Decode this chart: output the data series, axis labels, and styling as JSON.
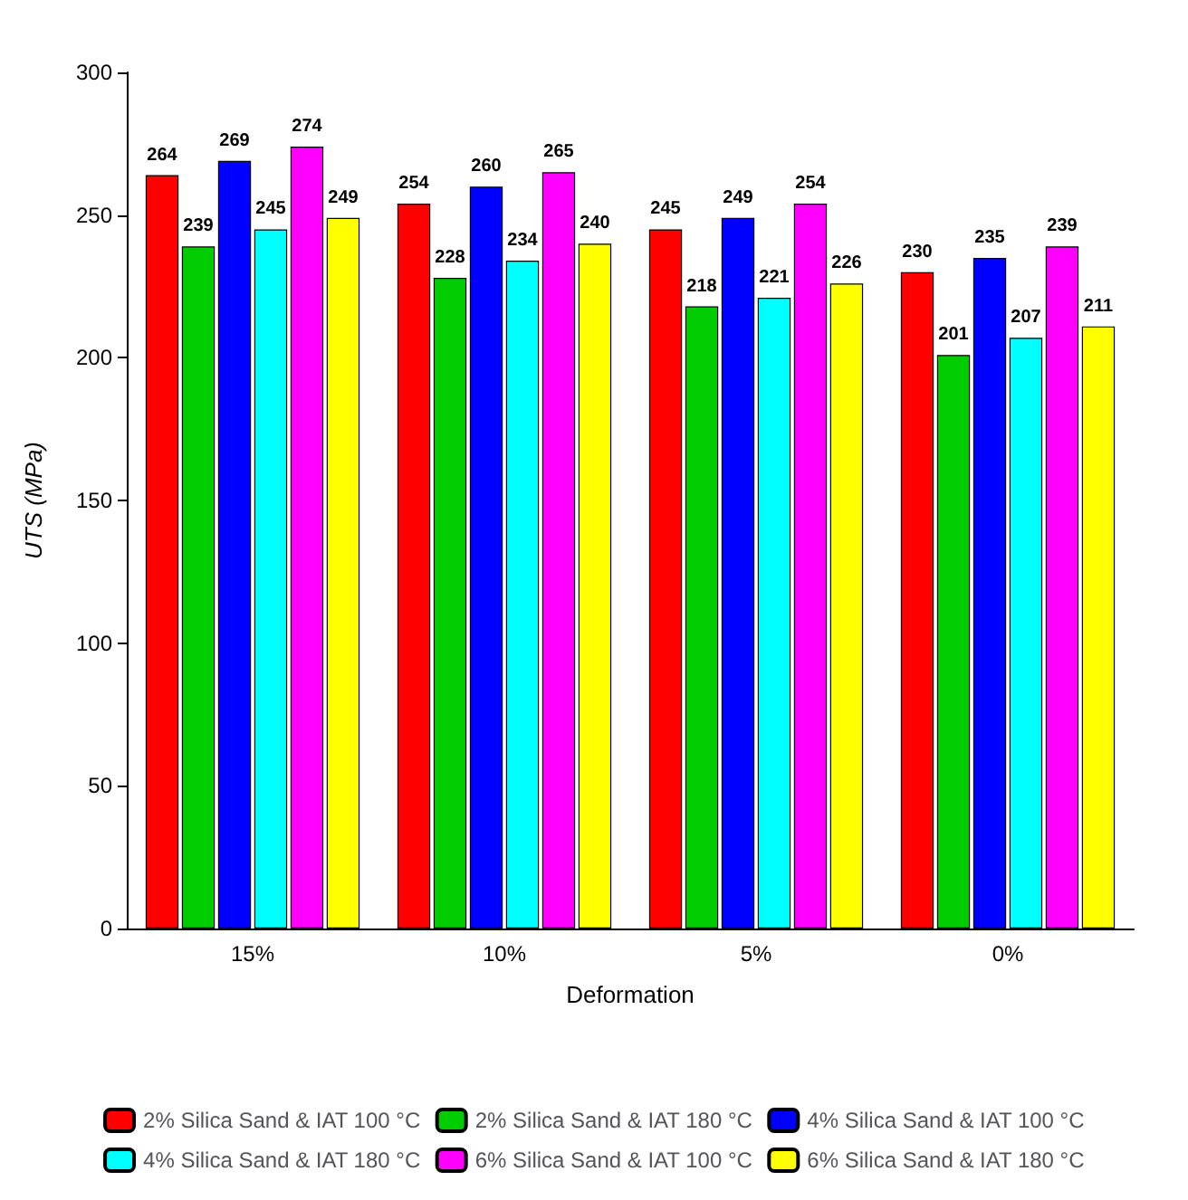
{
  "chart_data": {
    "type": "bar",
    "xlabel": "Deformation",
    "ylabel": "UTS (MPa)",
    "categories": [
      "15%",
      "10%",
      "5%",
      "0%"
    ],
    "series": [
      {
        "name": "2% Silica Sand & IAT 100 °C",
        "color": "#ff0000",
        "values": [
          264,
          254,
          245,
          230
        ]
      },
      {
        "name": "2% Silica Sand & IAT 180 °C",
        "color": "#00cc00",
        "values": [
          239,
          228,
          218,
          201
        ]
      },
      {
        "name": "4% Silica Sand & IAT 100 °C",
        "color": "#0000ff",
        "values": [
          269,
          260,
          249,
          235
        ]
      },
      {
        "name": "4% Silica Sand & IAT 180 °C",
        "color": "#00ffff",
        "values": [
          245,
          234,
          221,
          207
        ]
      },
      {
        "name": "6% Silica Sand & IAT 100 °C",
        "color": "#ff00ff",
        "values": [
          274,
          265,
          254,
          239
        ]
      },
      {
        "name": "6% Silica Sand & IAT 180 °C",
        "color": "#ffff00",
        "values": [
          249,
          240,
          226,
          211
        ]
      }
    ],
    "ylim": [
      0,
      300
    ],
    "yticks": [
      0,
      50,
      100,
      150,
      200,
      250,
      300
    ],
    "data_labels": true,
    "legend": "bottom"
  }
}
